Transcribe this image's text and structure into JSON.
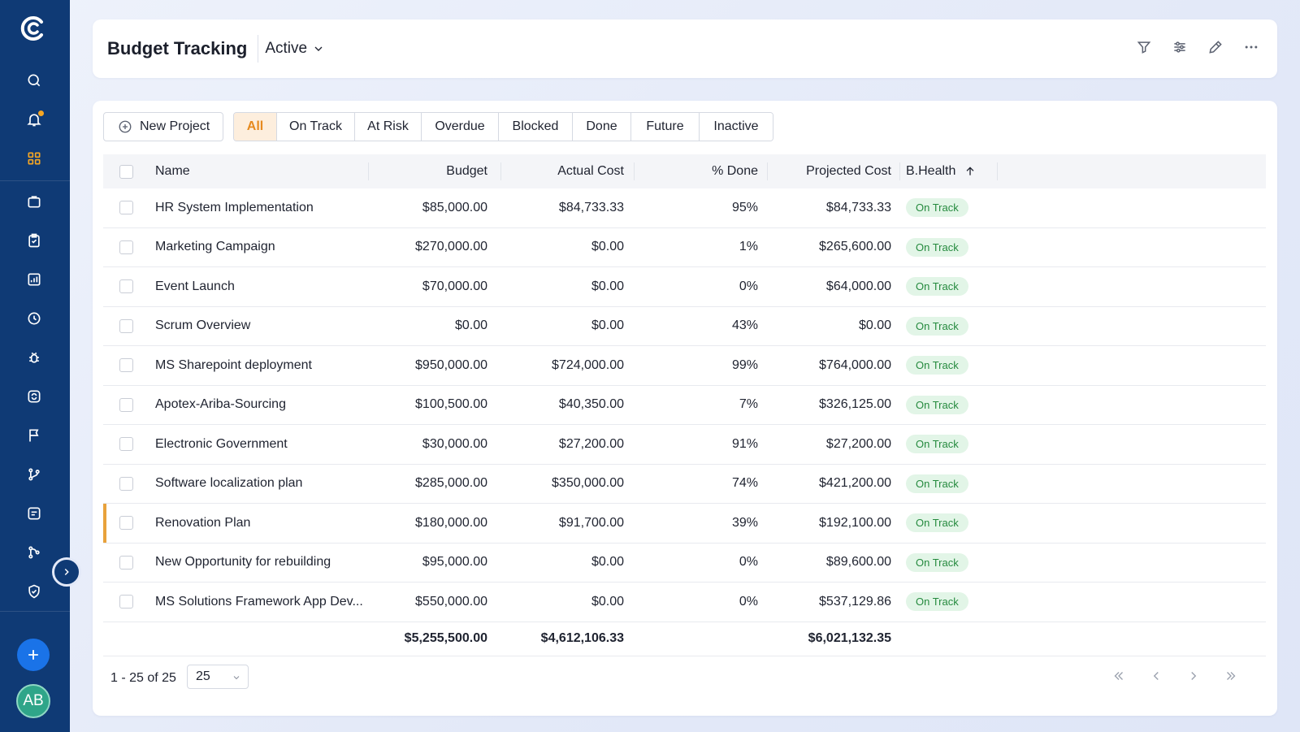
{
  "header": {
    "title": "Budget Tracking",
    "status_value": "Active"
  },
  "toolbar": {
    "new_project_label": "New Project",
    "filters": [
      "All",
      "On Track",
      "At Risk",
      "Overdue",
      "Blocked",
      "Done",
      "Future",
      "Inactive"
    ],
    "active_filter": "All"
  },
  "table": {
    "columns": {
      "name": "Name",
      "budget": "Budget",
      "actual_cost": "Actual Cost",
      "pct_done": "% Done",
      "projected_cost": "Projected Cost",
      "health": "B.Health"
    },
    "rows": [
      {
        "name": "HR System Implementation",
        "budget": "$85,000.00",
        "actual_cost": "$84,733.33",
        "pct_done": "95%",
        "projected_cost": "$84,733.33",
        "health": "On Track"
      },
      {
        "name": "Marketing Campaign",
        "budget": "$270,000.00",
        "actual_cost": "$0.00",
        "pct_done": "1%",
        "projected_cost": "$265,600.00",
        "health": "On Track"
      },
      {
        "name": "Event Launch",
        "budget": "$70,000.00",
        "actual_cost": "$0.00",
        "pct_done": "0%",
        "projected_cost": "$64,000.00",
        "health": "On Track"
      },
      {
        "name": "Scrum Overview",
        "budget": "$0.00",
        "actual_cost": "$0.00",
        "pct_done": "43%",
        "projected_cost": "$0.00",
        "health": "On Track"
      },
      {
        "name": "MS Sharepoint deployment",
        "budget": "$950,000.00",
        "actual_cost": "$724,000.00",
        "pct_done": "99%",
        "projected_cost": "$764,000.00",
        "health": "On Track"
      },
      {
        "name": "Apotex-Ariba-Sourcing",
        "budget": "$100,500.00",
        "actual_cost": "$40,350.00",
        "pct_done": "7%",
        "projected_cost": "$326,125.00",
        "health": "On Track"
      },
      {
        "name": "Electronic Government",
        "budget": "$30,000.00",
        "actual_cost": "$27,200.00",
        "pct_done": "91%",
        "projected_cost": "$27,200.00",
        "health": "On Track"
      },
      {
        "name": "Software localization plan",
        "budget": "$285,000.00",
        "actual_cost": "$350,000.00",
        "pct_done": "74%",
        "projected_cost": "$421,200.00",
        "health": "On Track"
      },
      {
        "name": "Renovation Plan",
        "budget": "$180,000.00",
        "actual_cost": "$91,700.00",
        "pct_done": "39%",
        "projected_cost": "$192,100.00",
        "health": "On Track"
      },
      {
        "name": "New Opportunity for rebuilding",
        "budget": "$95,000.00",
        "actual_cost": "$0.00",
        "pct_done": "0%",
        "projected_cost": "$89,600.00",
        "health": "On Track"
      },
      {
        "name": "MS Solutions Framework App Dev...",
        "budget": "$550,000.00",
        "actual_cost": "$0.00",
        "pct_done": "0%",
        "projected_cost": "$537,129.86",
        "health": "On Track"
      }
    ],
    "totals": {
      "budget": "$5,255,500.00",
      "actual_cost": "$4,612,106.33",
      "projected_cost": "$6,021,132.35"
    }
  },
  "pagination": {
    "range_text": "1 - 25 of 25",
    "page_size": "25"
  },
  "user": {
    "initials": "AB"
  },
  "colors": {
    "sidebar": "#0f3a75",
    "accent": "#f5a623",
    "primary": "#1a73e8",
    "badge_bg": "#e2f5e7",
    "badge_text": "#258a3e"
  }
}
